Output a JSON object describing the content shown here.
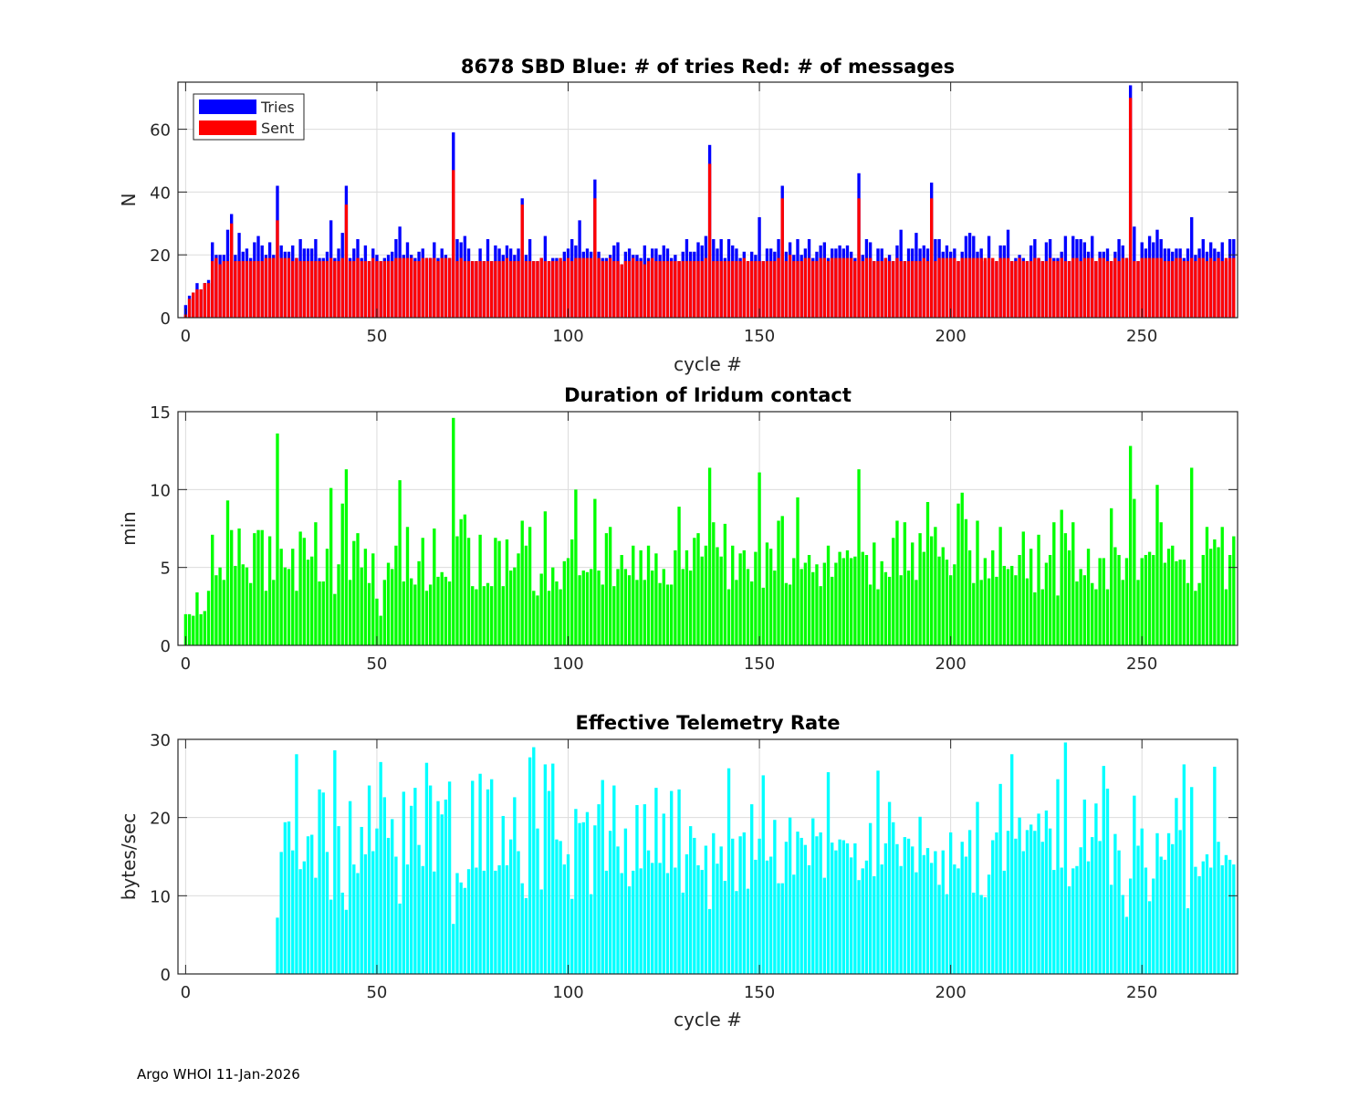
{
  "footer": "Argo WHOI 11-Jan-2026",
  "colors": {
    "tries": "#0000ff",
    "sent": "#ff0000",
    "duration": "#00ff00",
    "rate": "#00ffff"
  },
  "chart_data": [
    {
      "type": "bar",
      "title": "8678 SBD  Blue: # of tries   Red: # of messages",
      "xlabel": "cycle #",
      "ylabel": "N",
      "xlim": [
        -2,
        275
      ],
      "ylim": [
        0,
        75
      ],
      "xticks": [
        0,
        50,
        100,
        150,
        200,
        250
      ],
      "yticks": [
        0,
        20,
        40,
        60
      ],
      "grid": true,
      "legend": {
        "placement": "top-left",
        "entries": [
          "Tries",
          "Sent"
        ]
      },
      "series": [
        {
          "name": "Tries",
          "values": [
            4,
            7,
            8,
            11,
            9,
            11,
            12,
            24,
            20,
            20,
            20,
            28,
            33,
            20,
            27,
            21,
            22,
            19,
            24,
            26,
            23,
            20,
            24,
            20,
            42,
            23,
            21,
            21,
            23,
            19,
            25,
            22,
            22,
            22,
            25,
            19,
            19,
            21,
            31,
            19,
            22,
            27,
            42,
            19,
            22,
            25,
            19,
            23,
            18,
            22,
            20,
            18,
            19,
            20,
            21,
            25,
            29,
            20,
            24,
            20,
            19,
            21,
            22,
            19,
            19,
            24,
            19,
            22,
            20,
            19,
            59,
            25,
            24,
            26,
            22,
            18,
            18,
            22,
            18,
            25,
            18,
            23,
            22,
            20,
            23,
            22,
            20,
            22,
            38,
            20,
            25,
            18,
            18,
            19,
            26,
            18,
            19,
            19,
            18,
            21,
            22,
            25,
            23,
            31,
            21,
            22,
            21,
            44,
            21,
            19,
            19,
            20,
            23,
            24,
            17,
            21,
            22,
            20,
            20,
            19,
            23,
            19,
            22,
            22,
            20,
            23,
            22,
            19,
            20,
            18,
            21,
            25,
            21,
            21,
            24,
            23,
            26,
            55,
            25,
            22,
            25,
            19,
            25,
            23,
            22,
            19,
            21,
            18,
            21,
            20,
            32,
            18,
            22,
            22,
            21,
            25,
            42,
            21,
            24,
            20,
            25,
            20,
            22,
            25,
            19,
            21,
            23,
            24,
            19,
            22,
            22,
            23,
            22,
            23,
            21,
            19,
            46,
            20,
            25,
            24,
            18,
            22,
            22,
            19,
            20,
            18,
            23,
            28,
            18,
            22,
            22,
            27,
            22,
            23,
            22,
            43,
            25,
            25,
            21,
            23,
            21,
            22,
            18,
            21,
            26,
            27,
            26,
            21,
            22,
            18,
            26,
            18,
            18,
            23,
            23,
            28,
            18,
            19,
            20,
            19,
            18,
            23,
            25,
            19,
            18,
            24,
            25,
            19,
            19,
            21,
            26,
            18,
            26,
            25,
            25,
            24,
            21,
            26,
            18,
            21,
            21,
            22,
            18,
            21,
            25,
            23,
            19,
            74,
            29,
            18,
            24,
            22,
            26,
            24,
            28,
            25,
            22,
            22,
            21,
            22,
            22,
            19,
            22,
            32,
            20,
            22,
            25,
            21,
            24,
            22,
            21,
            24,
            18,
            25,
            25
          ]
        },
        {
          "name": "Sent",
          "values": [
            1,
            6,
            8,
            9,
            9,
            11,
            11,
            18,
            19,
            17,
            18,
            18,
            30,
            18,
            18,
            18,
            18,
            18,
            18,
            18,
            18,
            19,
            19,
            19,
            31,
            19,
            19,
            19,
            18,
            19,
            18,
            18,
            18,
            18,
            18,
            18,
            18,
            18,
            19,
            18,
            18,
            19,
            36,
            18,
            18,
            19,
            18,
            18,
            18,
            19,
            18,
            18,
            18,
            18,
            18,
            19,
            19,
            19,
            19,
            19,
            18,
            18,
            19,
            19,
            19,
            19,
            18,
            19,
            19,
            19,
            47,
            18,
            19,
            18,
            18,
            18,
            18,
            18,
            18,
            18,
            18,
            18,
            18,
            18,
            19,
            18,
            18,
            18,
            36,
            18,
            18,
            18,
            18,
            19,
            18,
            18,
            18,
            18,
            19,
            18,
            19,
            18,
            19,
            19,
            19,
            19,
            19,
            38,
            19,
            18,
            18,
            19,
            18,
            18,
            17,
            18,
            18,
            19,
            18,
            18,
            17,
            18,
            19,
            18,
            18,
            18,
            18,
            18,
            18,
            18,
            18,
            18,
            18,
            18,
            18,
            18,
            19,
            49,
            18,
            18,
            18,
            18,
            18,
            18,
            18,
            18,
            19,
            18,
            18,
            18,
            18,
            18,
            18,
            18,
            18,
            19,
            38,
            18,
            20,
            18,
            18,
            18,
            19,
            19,
            18,
            18,
            19,
            19,
            18,
            19,
            19,
            19,
            19,
            19,
            19,
            18,
            38,
            18,
            19,
            19,
            18,
            18,
            18,
            19,
            18,
            18,
            19,
            18,
            18,
            18,
            18,
            18,
            18,
            19,
            18,
            38,
            18,
            19,
            19,
            19,
            19,
            19,
            18,
            19,
            19,
            19,
            19,
            19,
            19,
            19,
            19,
            19,
            18,
            19,
            19,
            19,
            18,
            18,
            19,
            18,
            18,
            18,
            19,
            19,
            18,
            18,
            19,
            18,
            18,
            19,
            18,
            18,
            19,
            19,
            18,
            19,
            19,
            19,
            18,
            19,
            19,
            18,
            18,
            19,
            18,
            19,
            19,
            70,
            18,
            18,
            19,
            19,
            19,
            19,
            19,
            19,
            18,
            18,
            18,
            19,
            19,
            18,
            18,
            19,
            18,
            19,
            19,
            18,
            19,
            18,
            19,
            18,
            19,
            19,
            19
          ]
        }
      ]
    },
    {
      "type": "bar",
      "title": "Duration of Iridum contact",
      "xlabel": "",
      "ylabel": "min",
      "xlim": [
        -2,
        275
      ],
      "ylim": [
        0,
        15
      ],
      "xticks": [
        0,
        50,
        100,
        150,
        200,
        250
      ],
      "yticks": [
        0,
        5,
        10,
        15
      ],
      "grid": true,
      "values": [
        2.0,
        2.0,
        1.9,
        3.4,
        2.0,
        2.2,
        3.5,
        7.1,
        4.5,
        5.0,
        4.2,
        9.3,
        7.4,
        5.1,
        7.5,
        5.2,
        5.0,
        4.0,
        7.2,
        7.4,
        7.4,
        3.5,
        7.0,
        4.2,
        13.6,
        6.2,
        5.0,
        4.9,
        6.2,
        3.5,
        7.3,
        6.9,
        5.5,
        5.7,
        7.9,
        4.1,
        4.1,
        6.2,
        10.1,
        3.3,
        5.2,
        9.1,
        11.3,
        4.2,
        6.7,
        7.2,
        5.0,
        6.2,
        4.0,
        5.9,
        3.0,
        1.9,
        4.2,
        5.3,
        4.9,
        6.4,
        10.6,
        4.1,
        7.6,
        4.3,
        3.9,
        5.4,
        6.9,
        3.5,
        3.9,
        7.5,
        4.4,
        4.7,
        4.4,
        4.1,
        14.6,
        7.0,
        8.1,
        8.4,
        6.9,
        3.8,
        3.6,
        7.1,
        3.8,
        4.0,
        3.8,
        6.9,
        6.7,
        3.8,
        6.8,
        4.8,
        5.0,
        5.9,
        8.0,
        6.4,
        7.6,
        3.5,
        3.2,
        4.6,
        8.6,
        3.5,
        5.0,
        4.1,
        3.6,
        5.4,
        5.6,
        6.8,
        10.0,
        4.5,
        4.8,
        4.7,
        4.9,
        9.4,
        4.8,
        3.9,
        7.2,
        7.6,
        3.8,
        4.9,
        5.8,
        4.9,
        4.5,
        6.4,
        4.2,
        6.1,
        4.2,
        6.4,
        4.8,
        5.9,
        4.0,
        4.9,
        3.9,
        3.9,
        6.1,
        8.9,
        4.9,
        6.1,
        4.8,
        6.9,
        7.2,
        5.7,
        6.4,
        11.4,
        7.9,
        6.3,
        5.7,
        7.8,
        3.6,
        6.4,
        4.2,
        5.9,
        6.1,
        4.9,
        4.1,
        6.0,
        11.1,
        3.7,
        6.6,
        6.2,
        4.8,
        8.0,
        8.3,
        4.0,
        3.9,
        5.6,
        9.5,
        4.9,
        5.3,
        5.8,
        4.7,
        5.2,
        3.8,
        5.3,
        6.4,
        4.4,
        5.3,
        6.0,
        5.6,
        6.1,
        5.6,
        5.7,
        11.3,
        6.0,
        5.8,
        3.9,
        6.6,
        3.6,
        5.4,
        4.7,
        4.4,
        6.9,
        8.0,
        4.5,
        7.9,
        4.8,
        6.6,
        4.2,
        7.2,
        6.0,
        9.2,
        7.0,
        7.6,
        5.7,
        6.3,
        5.5,
        4.5,
        5.2,
        9.1,
        9.8,
        8.1,
        6.1,
        4.0,
        8.0,
        4.2,
        5.6,
        4.3,
        6.1,
        4.4,
        7.6,
        5.1,
        4.9,
        5.1,
        4.5,
        5.8,
        7.3,
        4.3,
        6.2,
        3.4,
        7.1,
        3.6,
        5.3,
        5.8,
        7.9,
        3.2,
        8.7,
        7.2,
        6.1,
        7.9,
        4.1,
        4.9,
        4.5,
        6.2,
        4.0,
        3.6,
        5.6,
        5.6,
        3.6,
        8.8,
        6.3,
        5.8,
        4.2,
        5.6,
        12.8,
        9.4,
        4.2,
        5.6,
        5.8,
        6.0,
        5.8,
        10.3,
        7.9,
        5.3,
        6.2,
        6.4,
        5.4,
        5.5,
        5.5,
        4.0,
        11.4,
        3.5,
        4.0,
        5.8,
        7.6,
        6.2,
        6.8,
        6.3,
        7.6,
        3.6,
        5.8,
        7.0
      ]
    },
    {
      "type": "bar",
      "title": "Effective Telemetry Rate",
      "xlabel": "cycle #",
      "ylabel": "bytes/sec",
      "xlim": [
        -2,
        275
      ],
      "ylim": [
        0,
        30
      ],
      "xticks": [
        0,
        50,
        100,
        150,
        200,
        250
      ],
      "yticks": [
        0,
        10,
        20,
        30
      ],
      "grid": true,
      "values": [
        0,
        0,
        0,
        0,
        0,
        0,
        0,
        0,
        0,
        0,
        0,
        0,
        0,
        0,
        0,
        0,
        0,
        0,
        0,
        0,
        0,
        0,
        0,
        0,
        7.2,
        15.6,
        19.4,
        19.5,
        15.8,
        28.1,
        13.4,
        14.4,
        17.6,
        17.8,
        12.3,
        23.6,
        23.2,
        15.6,
        9.5,
        28.6,
        18.9,
        10.4,
        8.2,
        22.1,
        14.0,
        12.9,
        18.8,
        15.3,
        24.1,
        15.7,
        18.6,
        27.1,
        22.6,
        17.4,
        19.8,
        15.0,
        9.0,
        23.3,
        14.0,
        21.5,
        23.8,
        16.5,
        13.8,
        27.0,
        24.1,
        13.1,
        22.1,
        20.4,
        22.3,
        24.6,
        6.4,
        12.9,
        11.7,
        11.0,
        13.4,
        24.7,
        13.6,
        25.6,
        13.2,
        23.6,
        24.9,
        13.2,
        13.9,
        20.2,
        13.9,
        17.2,
        22.6,
        15.7,
        11.6,
        9.7,
        27.7,
        29.0,
        18.6,
        10.8,
        26.8,
        23.4,
        26.9,
        17.2,
        17.0,
        14.0,
        15.3,
        9.6,
        21.1,
        19.3,
        19.4,
        20.7,
        10.2,
        19.0,
        21.7,
        24.8,
        13.2,
        18.3,
        24.1,
        16.3,
        12.9,
        18.6,
        11.2,
        13.2,
        21.6,
        13.5,
        21.7,
        15.8,
        14.2,
        23.8,
        14.2,
        20.5,
        12.9,
        23.4,
        13.6,
        23.6,
        10.4,
        15.3,
        18.9,
        17.4,
        13.9,
        13.3,
        16.4,
        8.3,
        18.0,
        14.1,
        16.3,
        11.9,
        26.3,
        17.3,
        10.6,
        17.6,
        18.1,
        10.9,
        21.7,
        14.6,
        17.3,
        25.4,
        14.5,
        15.0,
        19.7,
        11.6,
        11.6,
        16.9,
        20.0,
        12.7,
        18.2,
        17.4,
        16.5,
        13.9,
        19.9,
        17.6,
        18.1,
        12.3,
        25.8,
        16.8,
        15.8,
        17.2,
        17.1,
        16.7,
        14.9,
        16.7,
        12.0,
        13.5,
        14.5,
        19.3,
        12.5,
        26.0,
        14.0,
        16.7,
        22.0,
        19.4,
        16.6,
        13.8,
        17.5,
        17.3,
        16.3,
        13.0,
        20.1,
        15.2,
        16.1,
        14.2,
        15.7,
        11.4,
        15.8,
        10.2,
        18.1,
        14.0,
        13.5,
        16.9,
        15.0,
        18.4,
        10.4,
        22.0,
        10.1,
        9.8,
        12.7,
        17.1,
        18.1,
        24.3,
        13.2,
        18.3,
        28.1,
        17.3,
        20.0,
        15.7,
        18.4,
        19.1,
        18.3,
        20.5,
        16.9,
        20.9,
        18.6,
        13.3,
        24.9,
        13.6,
        29.6,
        11.2,
        13.5,
        13.8,
        16.2,
        22.3,
        14.4,
        17.5,
        21.8,
        17.0,
        26.6,
        23.7,
        11.4,
        17.9,
        15.8,
        10.1,
        7.3,
        12.2,
        22.8,
        16.4,
        18.6,
        13.6,
        9.3,
        12.2,
        18.0,
        15.0,
        14.6,
        18.0,
        16.6,
        22.5,
        18.4,
        26.8,
        8.4,
        23.9,
        13.7,
        12.5,
        14.4,
        15.3,
        13.6,
        26.5,
        16.9,
        13.9,
        15.2,
        14.6,
        14.0
      ]
    }
  ]
}
